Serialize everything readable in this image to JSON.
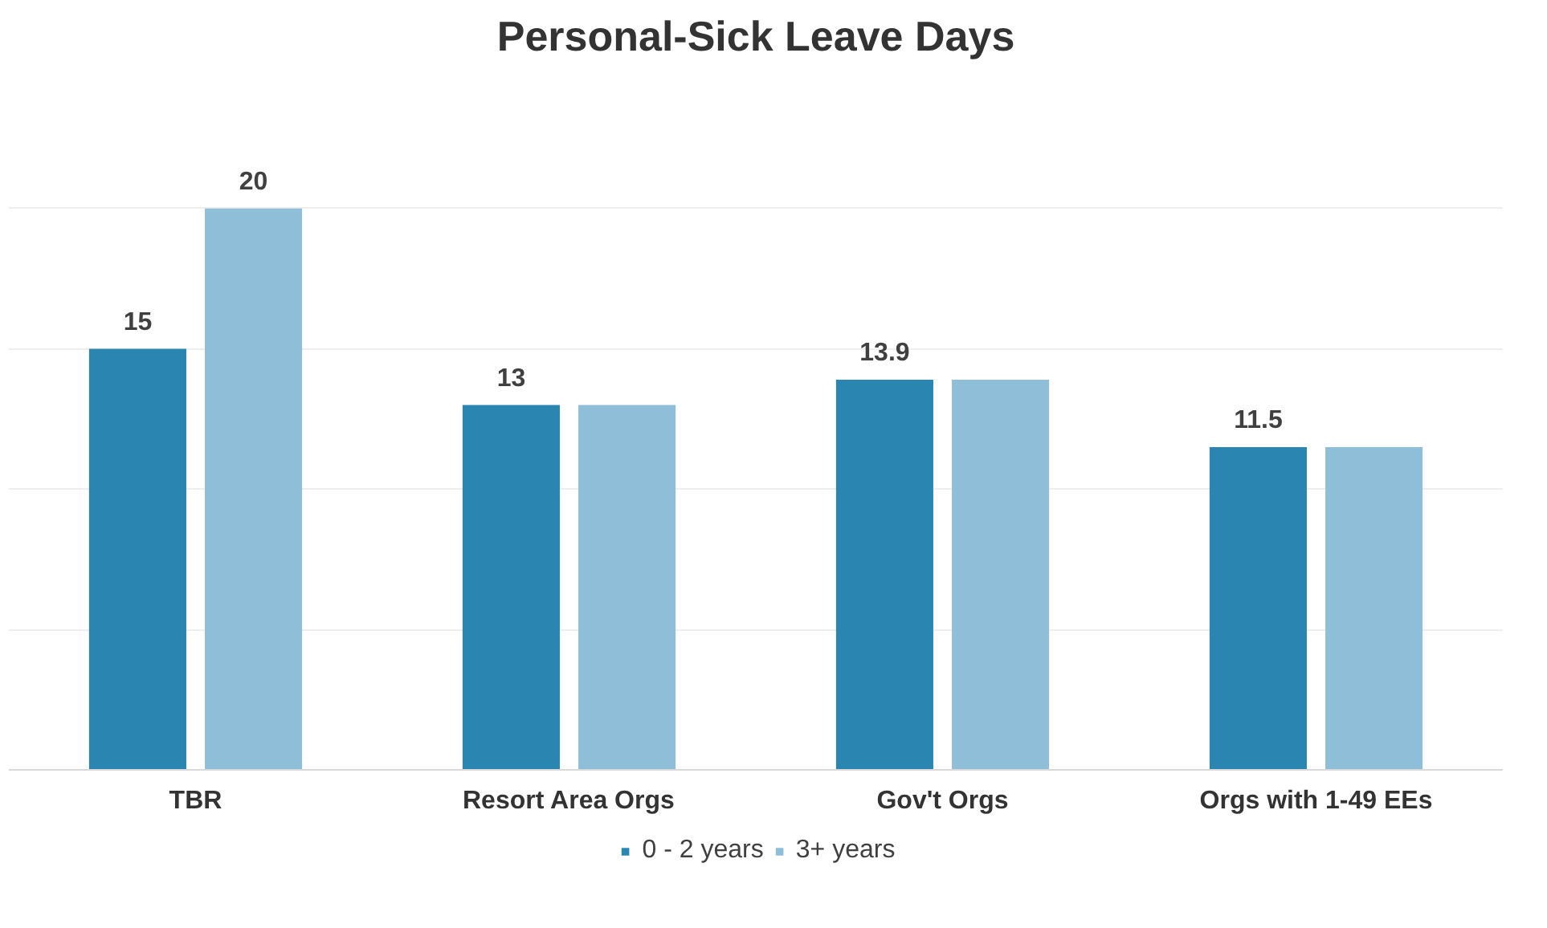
{
  "chart_data": {
    "type": "bar",
    "title": "Personal-Sick Leave Days",
    "categories": [
      "TBR",
      "Resort Area Orgs",
      "Gov't Orgs",
      "Orgs with 1-49 EEs"
    ],
    "series": [
      {
        "name": "0 - 2 years",
        "color": "#2a86b0",
        "values": [
          15,
          13,
          13.9,
          11.5
        ],
        "value_labels": [
          "15",
          "13",
          "13.9",
          "11.5"
        ]
      },
      {
        "name": "3+ years",
        "color": "#8fbfd8",
        "values": [
          20,
          13,
          13.9,
          11.5
        ],
        "value_labels": [
          "20",
          null,
          null,
          null
        ]
      }
    ],
    "yticks": [
      {
        "value": 0,
        "label": null
      },
      {
        "value": 5,
        "label": null
      },
      {
        "value": 10,
        "label": null
      },
      {
        "value": 15,
        "label": null
      },
      {
        "value": 20,
        "label": null
      }
    ],
    "grid": "y",
    "tick_labels": "x",
    "legend": "bottom"
  }
}
